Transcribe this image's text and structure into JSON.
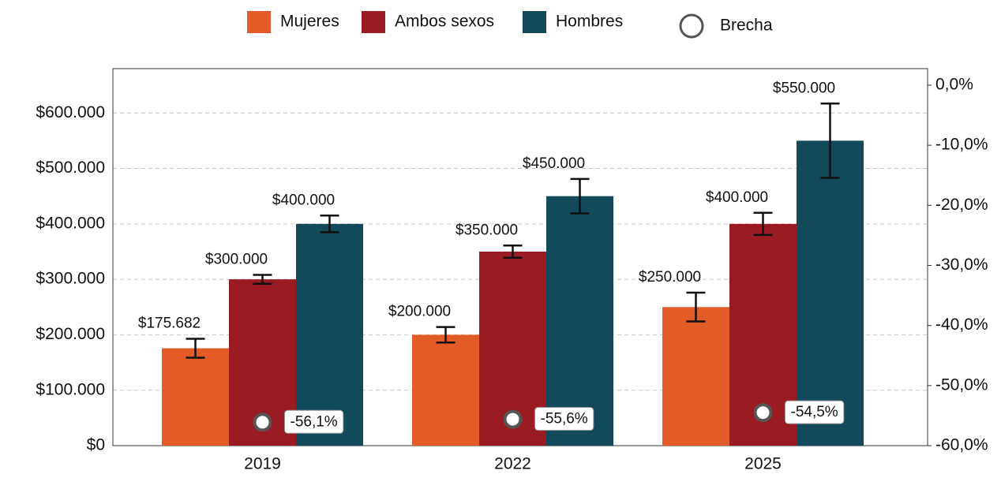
{
  "chart_data": {
    "type": "bar",
    "categories": [
      "2019",
      "2022",
      "2025"
    ],
    "series": [
      {
        "name": "Mujeres",
        "color": "#e35b27",
        "values": [
          175682,
          200000,
          250000
        ],
        "errors": [
          17000,
          14000,
          26000
        ],
        "value_labels": [
          "$175.682",
          "$200.000",
          "$250.000"
        ]
      },
      {
        "name": "Ambos sexos",
        "color": "#9a1b22",
        "values": [
          300000,
          350000,
          400000
        ],
        "errors": [
          8000,
          11000,
          20000
        ],
        "value_labels": [
          "$300.000",
          "$350.000",
          "$400.000"
        ]
      },
      {
        "name": "Hombres",
        "color": "#124a5b",
        "values": [
          400000,
          450000,
          550000
        ],
        "errors": [
          15000,
          31000,
          67000
        ],
        "value_labels": [
          "$400.000",
          "$450.000",
          "$550.000"
        ]
      },
      {
        "name": "Brecha",
        "type": "scatter",
        "axis": "y2",
        "color": "#ffffff",
        "values": [
          -56.1,
          -55.6,
          -54.5
        ],
        "value_labels": [
          "-56,1%",
          "-55,6%",
          "-54,5%"
        ]
      }
    ],
    "ylim": [
      0,
      680000
    ],
    "yticks": [
      {
        "value": 0,
        "label": "$0"
      },
      {
        "value": 100000,
        "label": "$100.000"
      },
      {
        "value": 200000,
        "label": "$200.000"
      },
      {
        "value": 300000,
        "label": "$300.000"
      },
      {
        "value": 400000,
        "label": "$400.000"
      },
      {
        "value": 500000,
        "label": "$500.000"
      },
      {
        "value": 600000,
        "label": "$600.000"
      }
    ],
    "y2lim": [
      -60,
      2.75
    ],
    "y2ticks": [
      {
        "value": -60,
        "label": "-60,0%"
      },
      {
        "value": -50,
        "label": "-50,0%"
      },
      {
        "value": -40,
        "label": "-40,0%"
      },
      {
        "value": -30,
        "label": "-30,0%"
      },
      {
        "value": -20,
        "label": "-20,0%"
      },
      {
        "value": -10,
        "label": "-10,0%"
      },
      {
        "value": 0,
        "label": "0,0%"
      }
    ],
    "grid": true
  }
}
